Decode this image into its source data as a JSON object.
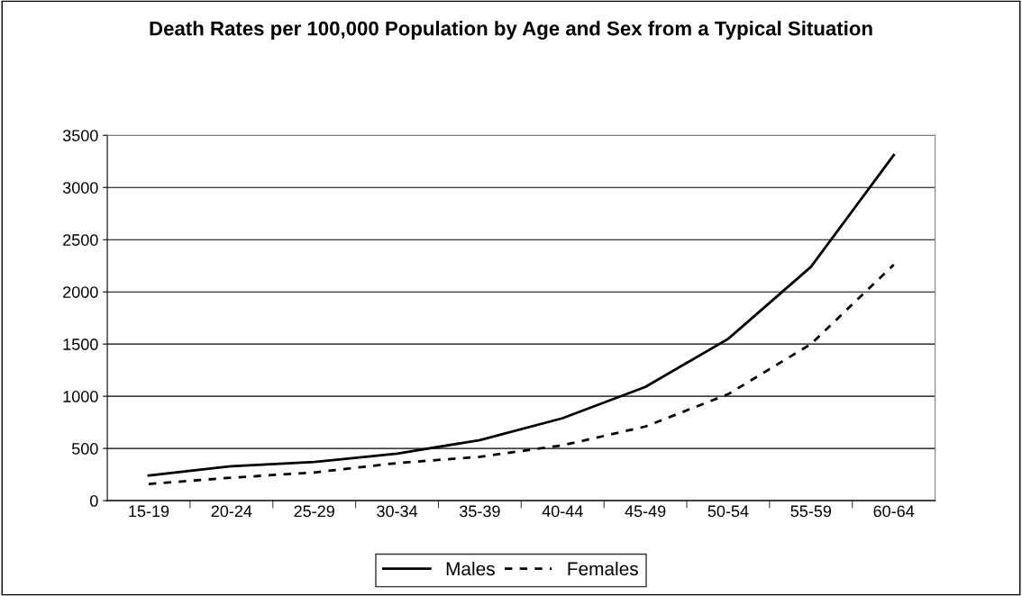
{
  "chart_data": {
    "type": "line",
    "title": "Death Rates per 100,000 Population by Age and Sex from a Typical Situation",
    "categories": [
      "15-19",
      "20-24",
      "25-29",
      "30-34",
      "35-39",
      "40-44",
      "45-49",
      "50-54",
      "55-59",
      "60-64"
    ],
    "series": [
      {
        "name": "Males",
        "color": "#000000",
        "line_style": "solid",
        "values": [
          240,
          330,
          370,
          450,
          580,
          790,
          1090,
          1550,
          2240,
          3310
        ]
      },
      {
        "name": "Females",
        "color": "#000000",
        "line_style": "dashed",
        "values": [
          160,
          220,
          270,
          360,
          420,
          530,
          710,
          1020,
          1500,
          2260
        ]
      }
    ],
    "ylim": [
      0,
      3500
    ],
    "yticks": [
      0,
      500,
      1000,
      1500,
      2000,
      2500,
      3000,
      3500
    ],
    "grid": "y",
    "legend": "bottom",
    "marker": "none"
  }
}
